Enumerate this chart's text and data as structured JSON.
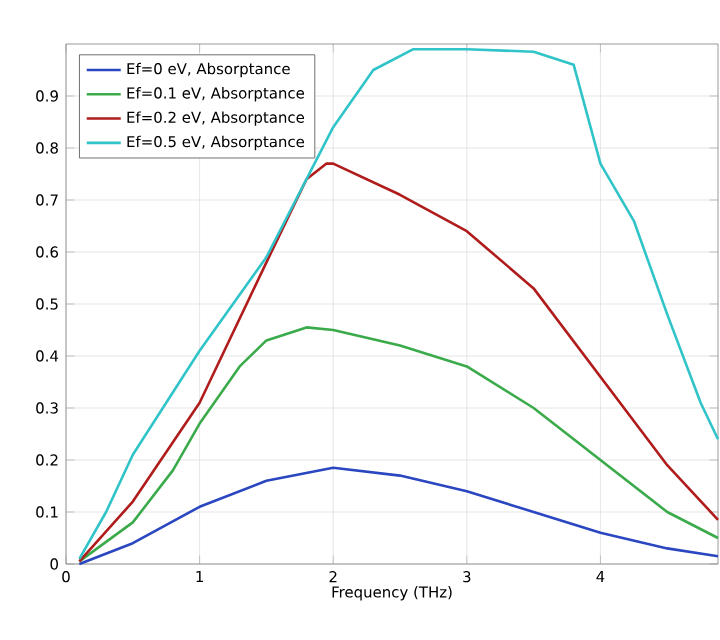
{
  "chart_data": {
    "type": "line",
    "xlabel": "Frequency (THz)",
    "xlim": [
      0,
      4.88
    ],
    "ylim": [
      0,
      1.0
    ],
    "xticks": [
      0,
      1,
      2,
      3,
      4
    ],
    "yticks": [
      0,
      0.1,
      0.2,
      0.3,
      0.4,
      0.5,
      0.6,
      0.7,
      0.8,
      0.9
    ],
    "grid": true,
    "legend": "top left",
    "marker": "none",
    "line_style": "solid",
    "series": [
      {
        "name": "Ef=0 eV, Absorptance",
        "color": "#2a46c0",
        "x": [
          0.1,
          0.5,
          1,
          1.5,
          2,
          2.5,
          3,
          3.5,
          4,
          4.5,
          4.88
        ],
        "values": [
          0,
          0.04,
          0.11,
          0.16,
          0.185,
          0.17,
          0.14,
          0.1,
          0.06,
          0.03,
          0.015
        ]
      },
      {
        "name": "Ef=0.1 eV, Absorptance",
        "color": "#3aaa4a",
        "x": [
          0.1,
          0.5,
          0.8,
          1,
          1.3,
          1.5,
          1.8,
          2,
          2.5,
          3,
          3.5,
          4,
          4.5,
          4.88
        ],
        "values": [
          0.005,
          0.08,
          0.18,
          0.27,
          0.38,
          0.43,
          0.455,
          0.45,
          0.42,
          0.38,
          0.3,
          0.2,
          0.1,
          0.05
        ]
      },
      {
        "name": "Ef=0.2 eV, Absorptance",
        "color": "#b01c1c",
        "x": [
          0.1,
          0.5,
          1,
          1.5,
          1.8,
          1.95,
          2,
          2.5,
          3,
          3.5,
          4,
          4.5,
          4.88
        ],
        "values": [
          0.005,
          0.12,
          0.31,
          0.58,
          0.74,
          0.77,
          0.77,
          0.71,
          0.64,
          0.53,
          0.36,
          0.19,
          0.085
        ]
      },
      {
        "name": "Ef=0.5 eV, Absorptance",
        "color": "#30c4c8",
        "x": [
          0.1,
          0.3,
          0.5,
          1,
          1.5,
          2,
          2.3,
          2.6,
          3,
          3.5,
          3.8,
          4,
          4.25,
          4.5,
          4.75,
          4.88
        ],
        "values": [
          0.01,
          0.1,
          0.21,
          0.41,
          0.59,
          0.84,
          0.95,
          0.99,
          0.99,
          0.985,
          0.96,
          0.77,
          0.66,
          0.48,
          0.31,
          0.24
        ]
      }
    ]
  }
}
